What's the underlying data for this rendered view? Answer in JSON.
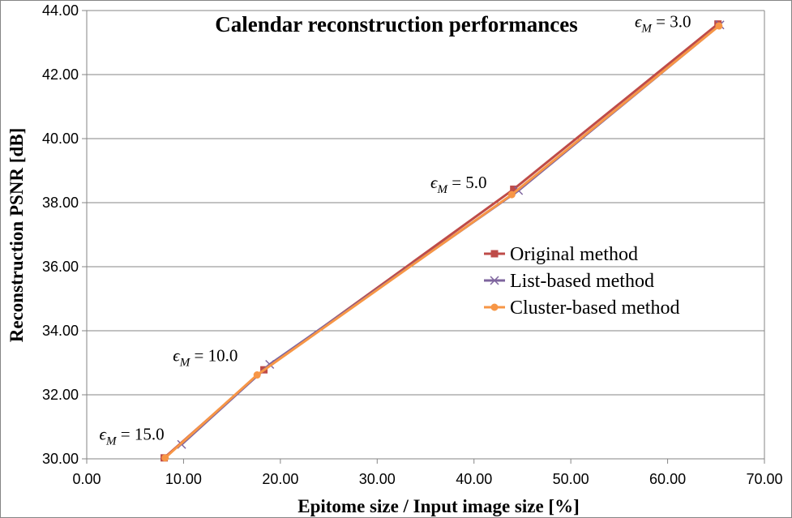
{
  "chart_data": {
    "type": "line",
    "title": "Calendar reconstruction performances",
    "xlabel": "Epitome size / Input image size [%]",
    "ylabel": "Reconstruction PSNR [dB]",
    "xlim": [
      0,
      70
    ],
    "ylim": [
      30,
      44
    ],
    "xticks": [
      "0.00",
      "10.00",
      "20.00",
      "30.00",
      "40.00",
      "50.00",
      "60.00",
      "70.00"
    ],
    "yticks": [
      "30.00",
      "32.00",
      "34.00",
      "36.00",
      "38.00",
      "40.00",
      "42.00",
      "44.00"
    ],
    "grid": "horizontal",
    "legend_position": "right",
    "series": [
      {
        "name": "Original method",
        "color": "#be4b48",
        "marker": "square",
        "x": [
          8.0,
          18.3,
          44.1,
          65.2
        ],
        "y": [
          30.03,
          32.78,
          38.42,
          43.58
        ]
      },
      {
        "name": "List-based method",
        "color": "#7e649e",
        "marker": "x",
        "x": [
          9.8,
          18.9,
          44.6,
          65.4
        ],
        "y": [
          30.45,
          32.95,
          38.38,
          43.55
        ]
      },
      {
        "name": "Cluster-based method",
        "color": "#f79646",
        "marker": "circle",
        "x": [
          8.1,
          17.6,
          43.9,
          65.3
        ],
        "y": [
          30.03,
          32.62,
          38.25,
          43.52
        ]
      }
    ],
    "annotations": [
      {
        "base": "ϵ",
        "sub": "M",
        "value": " = 15.0",
        "x": 1.3,
        "y": 30.6
      },
      {
        "base": "ϵ",
        "sub": "M",
        "value": " = 10.0",
        "x": 8.9,
        "y": 33.05
      },
      {
        "base": "ϵ",
        "sub": "M",
        "value": " = 5.0",
        "x": 35.5,
        "y": 38.45
      },
      {
        "base": "ϵ",
        "sub": "M",
        "value": " = 3.0",
        "x": 56.6,
        "y": 43.48
      }
    ]
  }
}
